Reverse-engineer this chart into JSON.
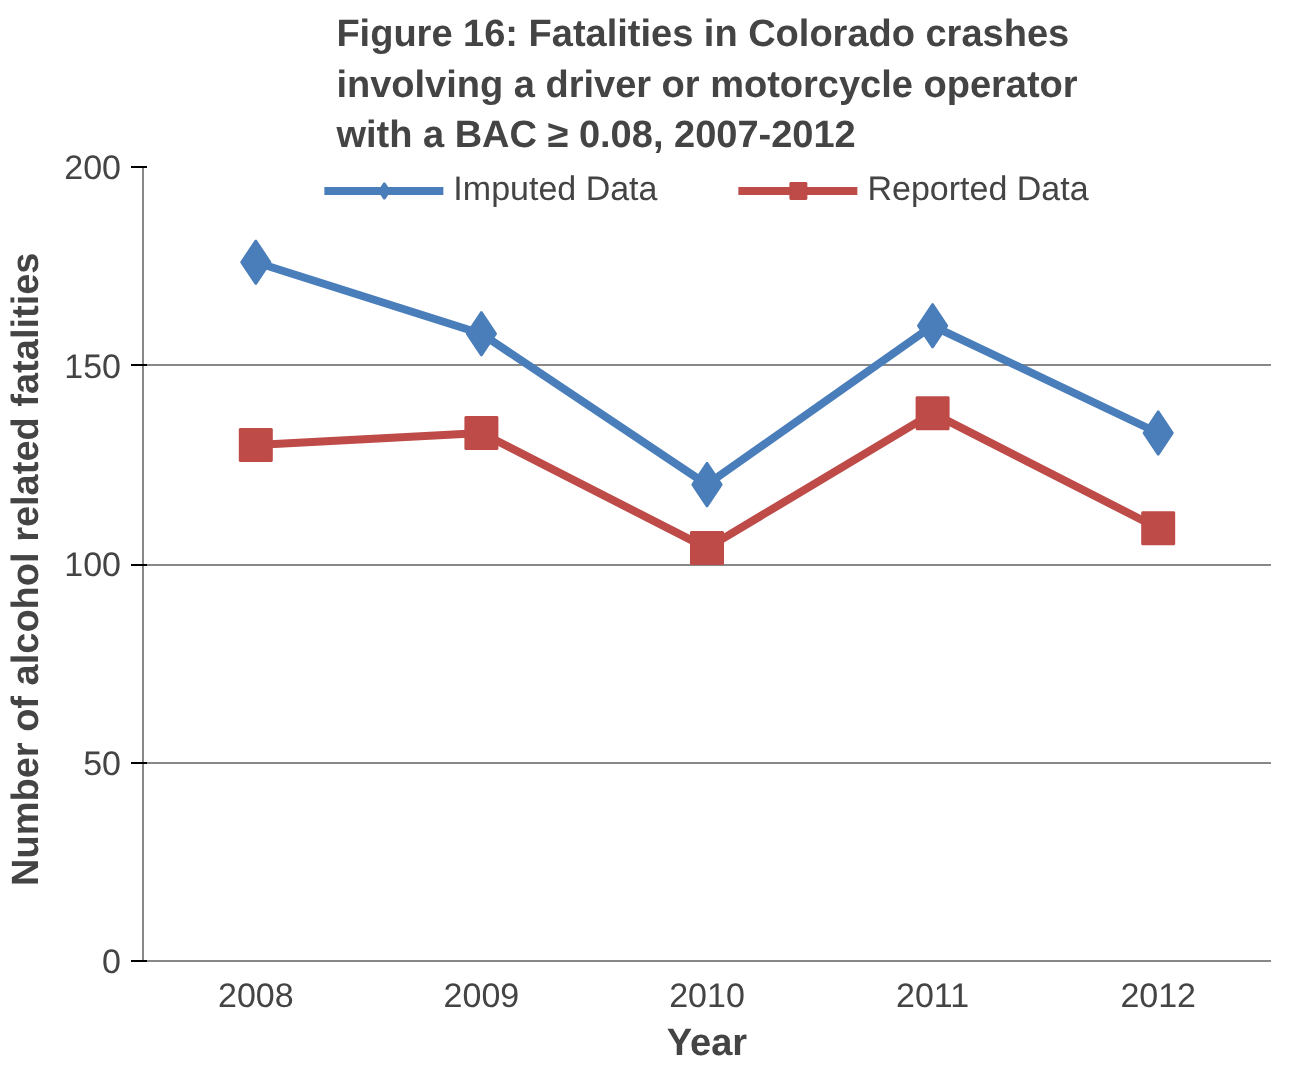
{
  "chart_data": {
    "type": "line",
    "title": "Figure 16: Fatalities in Colorado crashes involving a driver or motorcycle operator with a BAC ≥ 0.08, 2007-2012",
    "xlabel": "Year",
    "ylabel": "Number of alcohol related  fatalities",
    "categories": [
      "2008",
      "2009",
      "2010",
      "2011",
      "2012"
    ],
    "series": [
      {
        "name": "Imputed Data",
        "color": "#4a7ebb",
        "marker": "diamond",
        "values": [
          176,
          158,
          120,
          160,
          133
        ]
      },
      {
        "name": "Reported Data",
        "color": "#be4b48",
        "marker": "square",
        "values": [
          130,
          133,
          104,
          138,
          109
        ]
      }
    ],
    "ylim": [
      0,
      200
    ],
    "yticks": [
      0,
      50,
      100,
      150,
      200
    ],
    "grid": "y",
    "legend": "top",
    "line_style": "solid"
  }
}
